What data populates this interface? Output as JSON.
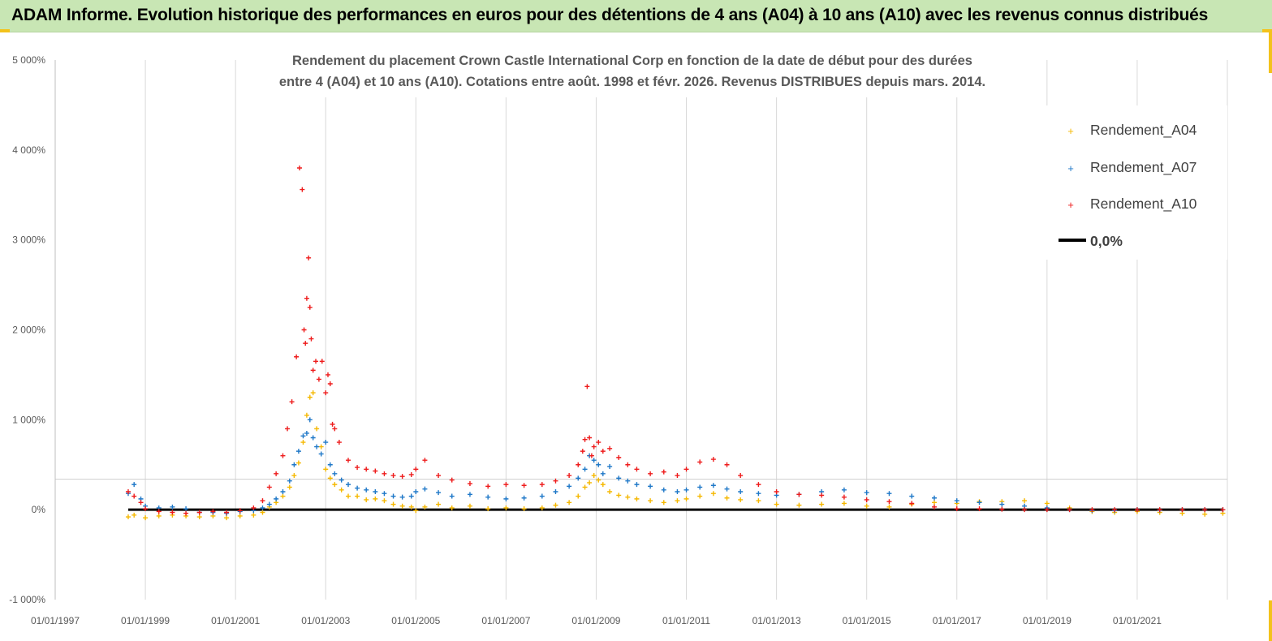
{
  "header": {
    "title": "ADAM Informe. Evolution historique des performances en euros pour des détentions de 4 ans (A04) à 10 ans (A10) avec les revenus connus distribués"
  },
  "colors": {
    "header_bg": "#c8e6b4",
    "corner": "#f3c21b",
    "A04": "#f5b800",
    "A07": "#1f78c8",
    "A10": "#ee1c1c",
    "zero": "#000000"
  },
  "chart_data": {
    "type": "scatter",
    "title_lines": [
      "Rendement du placement Crown Castle International Corp en fonction de la date de début pour des durées",
      "entre 4 (A04) et 10 ans (A10). Cotations entre août. 1998 et févr. 2026. Revenus DISTRIBUES depuis mars. 2014."
    ],
    "xlabel": "",
    "ylabel": "",
    "xlim": [
      1997.0,
      2023.0
    ],
    "ylim": [
      -1000,
      5000
    ],
    "y_ticks": [
      {
        "value": 5000,
        "label": "5 000%"
      },
      {
        "value": 4000,
        "label": "4 000%"
      },
      {
        "value": 3000,
        "label": "3 000%"
      },
      {
        "value": 2000,
        "label": "2 000%"
      },
      {
        "value": 1000,
        "label": "1 000%"
      },
      {
        "value": 0,
        "label": "0%"
      },
      {
        "value": -1000,
        "label": "-1 000%"
      }
    ],
    "x_ticks": [
      {
        "value": 1997,
        "label": "01/01/1997"
      },
      {
        "value": 1999,
        "label": "01/01/1999"
      },
      {
        "value": 2001,
        "label": "01/01/2001"
      },
      {
        "value": 2003,
        "label": "01/01/2003"
      },
      {
        "value": 2005,
        "label": "01/01/2005"
      },
      {
        "value": 2007,
        "label": "01/01/2007"
      },
      {
        "value": 2009,
        "label": "01/01/2009"
      },
      {
        "value": 2011,
        "label": "01/01/2011"
      },
      {
        "value": 2013,
        "label": "01/01/2013"
      },
      {
        "value": 2015,
        "label": "01/01/2015"
      },
      {
        "value": 2017,
        "label": "01/01/2017"
      },
      {
        "value": 2019,
        "label": "01/01/2019"
      },
      {
        "value": 2021,
        "label": "01/01/2021"
      }
    ],
    "grid": "vertical",
    "legend_position": "top-right",
    "series": [
      {
        "name": "Rendement_A04",
        "marker": "+",
        "color": "#f5b800",
        "x": [
          1998.62,
          1998.75,
          1999.0,
          1999.3,
          1999.6,
          1999.9,
          2000.2,
          2000.5,
          2000.8,
          2001.1,
          2001.4,
          2001.6,
          2001.75,
          2001.9,
          2002.05,
          2002.2,
          2002.3,
          2002.4,
          2002.5,
          2002.58,
          2002.65,
          2002.72,
          2002.8,
          2002.9,
          2003.0,
          2003.1,
          2003.2,
          2003.35,
          2003.5,
          2003.7,
          2003.9,
          2004.1,
          2004.3,
          2004.5,
          2004.7,
          2004.9,
          2005.0,
          2005.2,
          2005.5,
          2005.8,
          2006.2,
          2006.6,
          2007.0,
          2007.4,
          2007.8,
          2008.1,
          2008.4,
          2008.6,
          2008.75,
          2008.85,
          2008.95,
          2009.05,
          2009.15,
          2009.3,
          2009.5,
          2009.7,
          2009.9,
          2010.2,
          2010.5,
          2010.8,
          2011.0,
          2011.3,
          2011.6,
          2011.9,
          2012.2,
          2012.6,
          2013.0,
          2013.5,
          2014.0,
          2014.5,
          2015.0,
          2015.5,
          2016.0,
          2016.5,
          2017.0,
          2017.5,
          2018.0,
          2018.5,
          2019.0,
          2019.5,
          2020.0,
          2020.5,
          2021.0,
          2021.5,
          2022.0,
          2022.5,
          2022.9
        ],
        "y": [
          -80,
          -60,
          -90,
          -70,
          -60,
          -70,
          -80,
          -70,
          -90,
          -70,
          -60,
          -30,
          30,
          80,
          150,
          250,
          380,
          520,
          750,
          1050,
          1250,
          1300,
          900,
          700,
          450,
          350,
          280,
          220,
          150,
          150,
          110,
          120,
          100,
          60,
          40,
          30,
          -10,
          30,
          60,
          20,
          40,
          10,
          20,
          10,
          20,
          50,
          80,
          150,
          250,
          300,
          380,
          330,
          280,
          200,
          160,
          140,
          120,
          100,
          80,
          100,
          120,
          150,
          180,
          130,
          110,
          100,
          60,
          50,
          60,
          70,
          40,
          30,
          60,
          80,
          70,
          90,
          90,
          100,
          70,
          20,
          -20,
          -30,
          -20,
          -30,
          -40,
          -50,
          -40
        ]
      },
      {
        "name": "Rendement_A07",
        "marker": "+",
        "color": "#1f78c8",
        "x": [
          1998.62,
          1998.75,
          1998.9,
          1999.0,
          1999.3,
          1999.6,
          1999.9,
          2000.2,
          2000.5,
          2000.8,
          2001.1,
          2001.4,
          2001.6,
          2001.75,
          2001.9,
          2002.05,
          2002.2,
          2002.3,
          2002.4,
          2002.5,
          2002.58,
          2002.65,
          2002.72,
          2002.8,
          2002.9,
          2003.0,
          2003.1,
          2003.2,
          2003.35,
          2003.5,
          2003.7,
          2003.9,
          2004.1,
          2004.3,
          2004.5,
          2004.7,
          2004.9,
          2005.0,
          2005.2,
          2005.5,
          2005.8,
          2006.2,
          2006.6,
          2007.0,
          2007.4,
          2007.8,
          2008.1,
          2008.4,
          2008.6,
          2008.75,
          2008.85,
          2008.95,
          2009.05,
          2009.15,
          2009.3,
          2009.5,
          2009.7,
          2009.9,
          2010.2,
          2010.5,
          2010.8,
          2011.0,
          2011.3,
          2011.6,
          2011.9,
          2012.2,
          2012.6,
          2013.0,
          2013.5,
          2014.0,
          2014.5,
          2015.0,
          2015.5,
          2016.0,
          2016.5,
          2017.0,
          2017.5,
          2018.0,
          2018.5,
          2019.0,
          2019.5,
          2020.0,
          2020.5,
          2021.0,
          2021.5,
          2022.0,
          2022.5,
          2022.9
        ],
        "y": [
          180,
          280,
          120,
          40,
          20,
          30,
          10,
          -30,
          -30,
          -40,
          -20,
          -10,
          20,
          60,
          120,
          200,
          320,
          500,
          650,
          820,
          850,
          1000,
          800,
          700,
          620,
          750,
          500,
          400,
          330,
          280,
          240,
          220,
          200,
          180,
          150,
          140,
          150,
          200,
          230,
          190,
          150,
          170,
          140,
          120,
          130,
          150,
          200,
          260,
          350,
          450,
          600,
          550,
          500,
          400,
          480,
          350,
          320,
          280,
          260,
          220,
          200,
          220,
          250,
          270,
          230,
          200,
          180,
          160,
          170,
          200,
          220,
          190,
          180,
          150,
          130,
          100,
          80,
          60,
          40,
          20,
          0,
          -10,
          -10,
          0,
          -5,
          0,
          0,
          0
        ]
      },
      {
        "name": "Rendement_A10",
        "marker": "+",
        "color": "#ee1c1c",
        "x": [
          1998.62,
          1998.75,
          1998.9,
          1999.0,
          1999.3,
          1999.6,
          1999.9,
          2000.2,
          2000.5,
          2000.8,
          2001.1,
          2001.4,
          2001.6,
          2001.75,
          2001.9,
          2002.05,
          2002.15,
          2002.25,
          2002.35,
          2002.42,
          2002.48,
          2002.52,
          2002.55,
          2002.58,
          2002.62,
          2002.65,
          2002.68,
          2002.72,
          2002.78,
          2002.85,
          2002.92,
          2003.0,
          2003.05,
          2003.1,
          2003.15,
          2003.2,
          2003.3,
          2003.5,
          2003.7,
          2003.9,
          2004.1,
          2004.3,
          2004.5,
          2004.7,
          2004.9,
          2005.0,
          2005.2,
          2005.5,
          2005.8,
          2006.2,
          2006.6,
          2007.0,
          2007.4,
          2007.8,
          2008.1,
          2008.4,
          2008.6,
          2008.7,
          2008.75,
          2008.8,
          2008.85,
          2008.9,
          2008.95,
          2009.05,
          2009.15,
          2009.3,
          2009.5,
          2009.7,
          2009.9,
          2010.2,
          2010.5,
          2010.8,
          2011.0,
          2011.3,
          2011.6,
          2011.9,
          2012.2,
          2012.6,
          2013.0,
          2013.5,
          2014.0,
          2014.5,
          2015.0,
          2015.5,
          2016.0,
          2016.5,
          2017.0,
          2017.5,
          2018.0,
          2018.5,
          2019.0,
          2019.5,
          2020.0,
          2020.5,
          2021.0,
          2021.5,
          2022.0,
          2022.5,
          2022.9
        ],
        "y": [
          200,
          150,
          80,
          10,
          -20,
          -30,
          -40,
          -30,
          -20,
          -30,
          -10,
          20,
          100,
          250,
          400,
          600,
          900,
          1200,
          1700,
          3800,
          3560,
          2000,
          1850,
          2350,
          2800,
          2250,
          1900,
          1550,
          1650,
          1450,
          1650,
          1300,
          1500,
          1400,
          950,
          900,
          750,
          550,
          470,
          450,
          430,
          400,
          380,
          370,
          390,
          450,
          550,
          380,
          330,
          290,
          260,
          280,
          270,
          280,
          320,
          380,
          500,
          650,
          780,
          1370,
          800,
          600,
          700,
          750,
          650,
          680,
          580,
          500,
          450,
          400,
          420,
          380,
          450,
          530,
          560,
          500,
          380,
          280,
          200,
          170,
          160,
          140,
          110,
          90,
          70,
          30,
          10,
          10,
          5,
          0,
          0,
          0,
          0,
          0,
          0,
          0,
          0,
          0,
          0
        ]
      },
      {
        "name": "0,0%",
        "type": "line",
        "color": "#000000",
        "x": [
          1998.62,
          2022.9
        ],
        "y": [
          0,
          0
        ]
      }
    ]
  }
}
